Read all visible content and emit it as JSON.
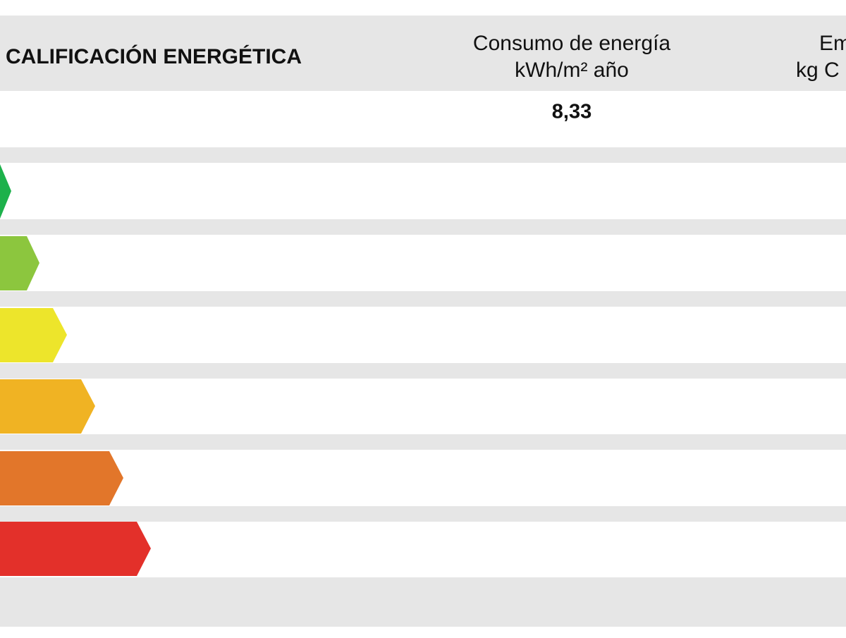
{
  "header": {
    "title": "CALIFICACIÓN ENERGÉTICA",
    "consumption": {
      "label": "Consumo de energía",
      "unit": "kWh/m² año",
      "value": "8,33"
    },
    "emissions": {
      "label": "Em",
      "unit": "kg C"
    }
  }
}
